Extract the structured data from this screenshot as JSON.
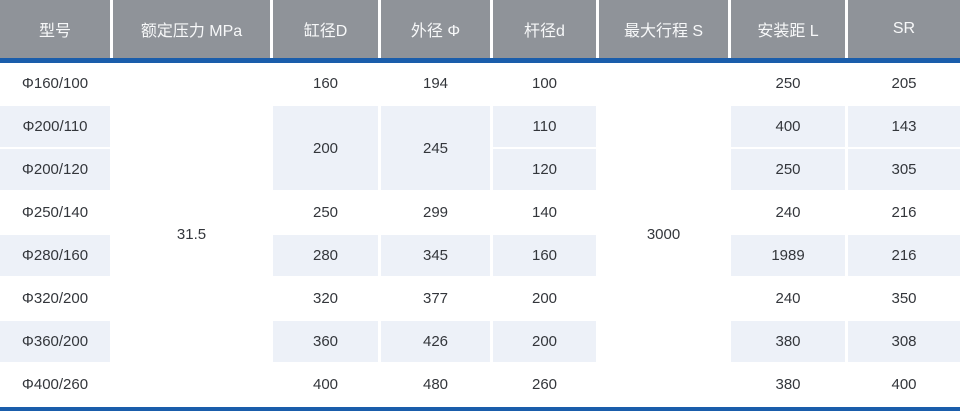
{
  "table": {
    "headers": [
      "型号",
      "额定压力 MPa",
      "缸径D",
      "外径 Φ",
      "杆径d",
      "最大行程 S",
      "安装距 L",
      "SR"
    ],
    "merged": {
      "rated_pressure": "31.5",
      "max_stroke": "3000"
    },
    "rows": [
      {
        "model": "Φ160/100",
        "bore": "160",
        "outer": "194",
        "rod": "100",
        "mount": "250",
        "sr": "205"
      },
      {
        "model": "Φ200/110",
        "bore": "200",
        "outer": "245",
        "rod": "110",
        "mount": "400",
        "sr": "143"
      },
      {
        "model": "Φ200/120",
        "rod": "120",
        "mount": "250",
        "sr": "305"
      },
      {
        "model": "Φ250/140",
        "bore": "250",
        "outer": "299",
        "rod": "140",
        "mount": "240",
        "sr": "216"
      },
      {
        "model": "Φ280/160",
        "bore": "280",
        "outer": "345",
        "rod": "160",
        "mount": "1989",
        "sr": "216"
      },
      {
        "model": "Φ320/200",
        "bore": "320",
        "outer": "377",
        "rod": "200",
        "mount": "240",
        "sr": "350"
      },
      {
        "model": "Φ360/200",
        "bore": "360",
        "outer": "426",
        "rod": "200",
        "mount": "380",
        "sr": "308"
      },
      {
        "model": "Φ400/260",
        "bore": "400",
        "outer": "480",
        "rod": "260",
        "mount": "380",
        "sr": "400"
      }
    ],
    "colors": {
      "header_bg": "#8F9399",
      "header_text": "#F7F8F9",
      "accent_blue": "#1A5DAB",
      "row_alt_bg": "#EDF1F8",
      "body_text": "#33363B"
    }
  }
}
